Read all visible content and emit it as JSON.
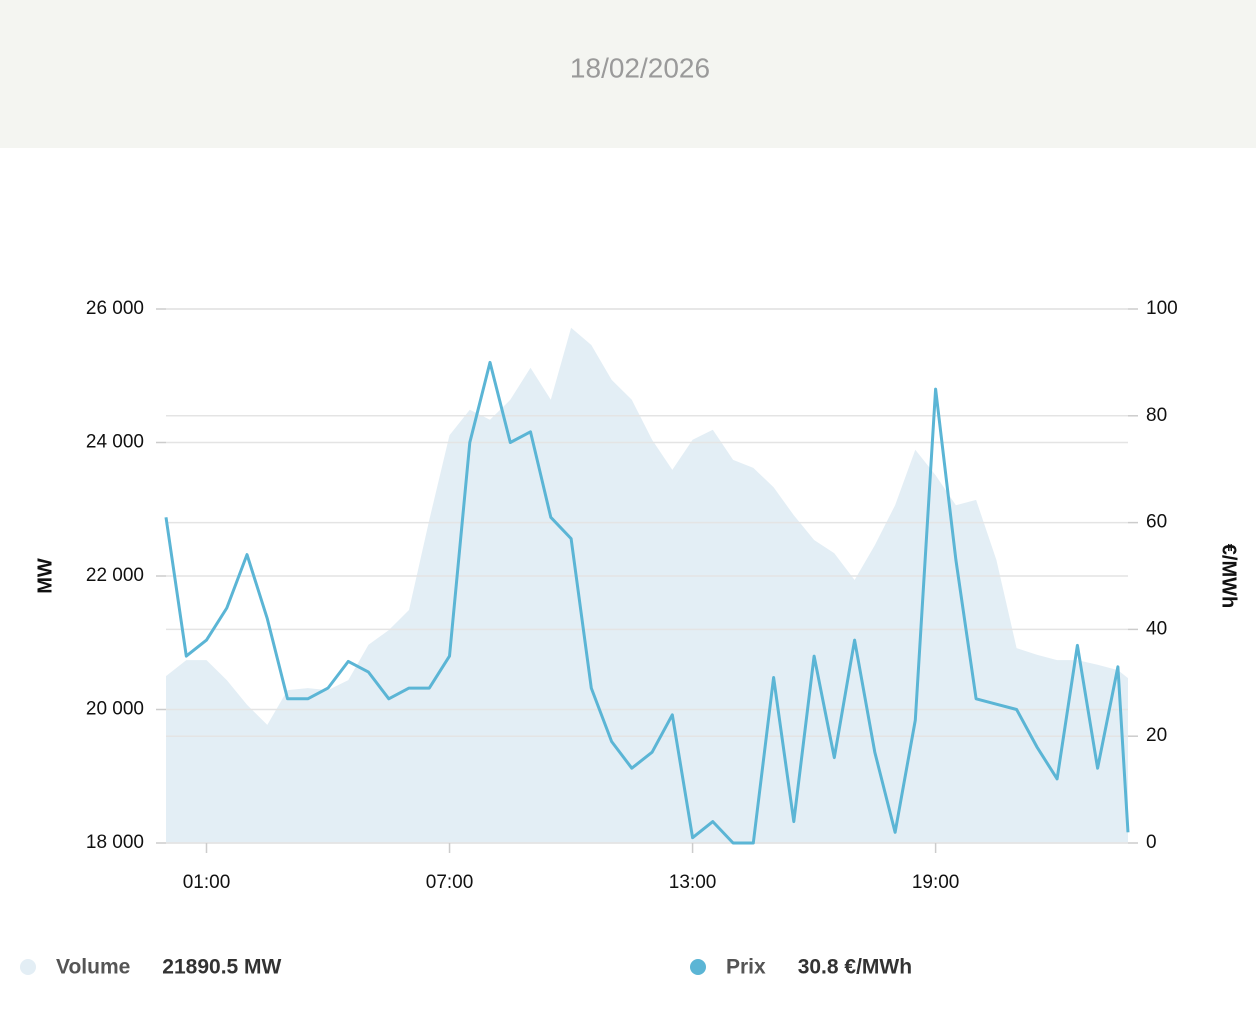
{
  "header": {
    "date": "18/02/2026"
  },
  "chart_data": {
    "type": "area-line",
    "y_label": "MW",
    "y2_label": "€/MWh",
    "x": [
      0,
      0.5,
      1,
      1.5,
      2,
      2.5,
      3,
      3.5,
      4,
      4.5,
      5,
      5.5,
      6,
      6.5,
      7,
      7.5,
      8,
      8.5,
      9,
      9.5,
      10,
      10.5,
      11,
      11.5,
      12,
      12.5,
      13,
      13.5,
      14,
      14.5,
      15,
      15.5,
      16,
      16.5,
      17,
      17.5,
      18,
      18.5,
      19,
      19.5,
      20,
      20.5,
      21,
      21.5,
      22,
      22.5,
      23,
      23.5,
      23.75
    ],
    "xlim": [
      0,
      23.75
    ],
    "xticks": [
      {
        "value": 1,
        "label": "01:00"
      },
      {
        "value": 7,
        "label": "07:00"
      },
      {
        "value": 13,
        "label": "13:00"
      },
      {
        "value": 19,
        "label": "19:00"
      }
    ],
    "ylim": [
      18000,
      26000
    ],
    "yticks": [
      {
        "value": 18000,
        "label": "18 000"
      },
      {
        "value": 20000,
        "label": "20 000"
      },
      {
        "value": 22000,
        "label": "22 000"
      },
      {
        "value": 24000,
        "label": "24 000"
      },
      {
        "value": 26000,
        "label": "26 000"
      }
    ],
    "y2lim": [
      0,
      100
    ],
    "y2ticks": [
      0,
      20,
      40,
      60,
      80,
      100
    ],
    "grid": true,
    "series": [
      {
        "name": "Volume",
        "color": "#e3eef5",
        "current_label": "21890.5 MW",
        "values": [
          20500,
          20740,
          20740,
          20440,
          20070,
          19770,
          20290,
          20320,
          20290,
          20440,
          20970,
          21190,
          21490,
          22840,
          24110,
          24490,
          24340,
          24640,
          25120,
          24640,
          25720,
          25460,
          24940,
          24640,
          24040,
          23590,
          24040,
          24190,
          23740,
          23620,
          23330,
          22910,
          22540,
          22340,
          21940,
          22460,
          23060,
          23890,
          23510,
          23060,
          23140,
          22240,
          20920,
          20820,
          20740,
          20740,
          20670,
          20590,
          20470
        ]
      },
      {
        "name": "Prix",
        "color": "#5bb5d5",
        "axis": "y2",
        "current_label": "30.8 €/MWh",
        "values": [
          61,
          35,
          38,
          44,
          54,
          42,
          27,
          27,
          29,
          34,
          32,
          27,
          29,
          29,
          35,
          75,
          90,
          75,
          77,
          61,
          57,
          29,
          19,
          14,
          17,
          24,
          1,
          4,
          0,
          0,
          31,
          4,
          35,
          16,
          38,
          17,
          2,
          23,
          85,
          53,
          27,
          26,
          25,
          18,
          12,
          37,
          14,
          33,
          2
        ]
      }
    ]
  }
}
